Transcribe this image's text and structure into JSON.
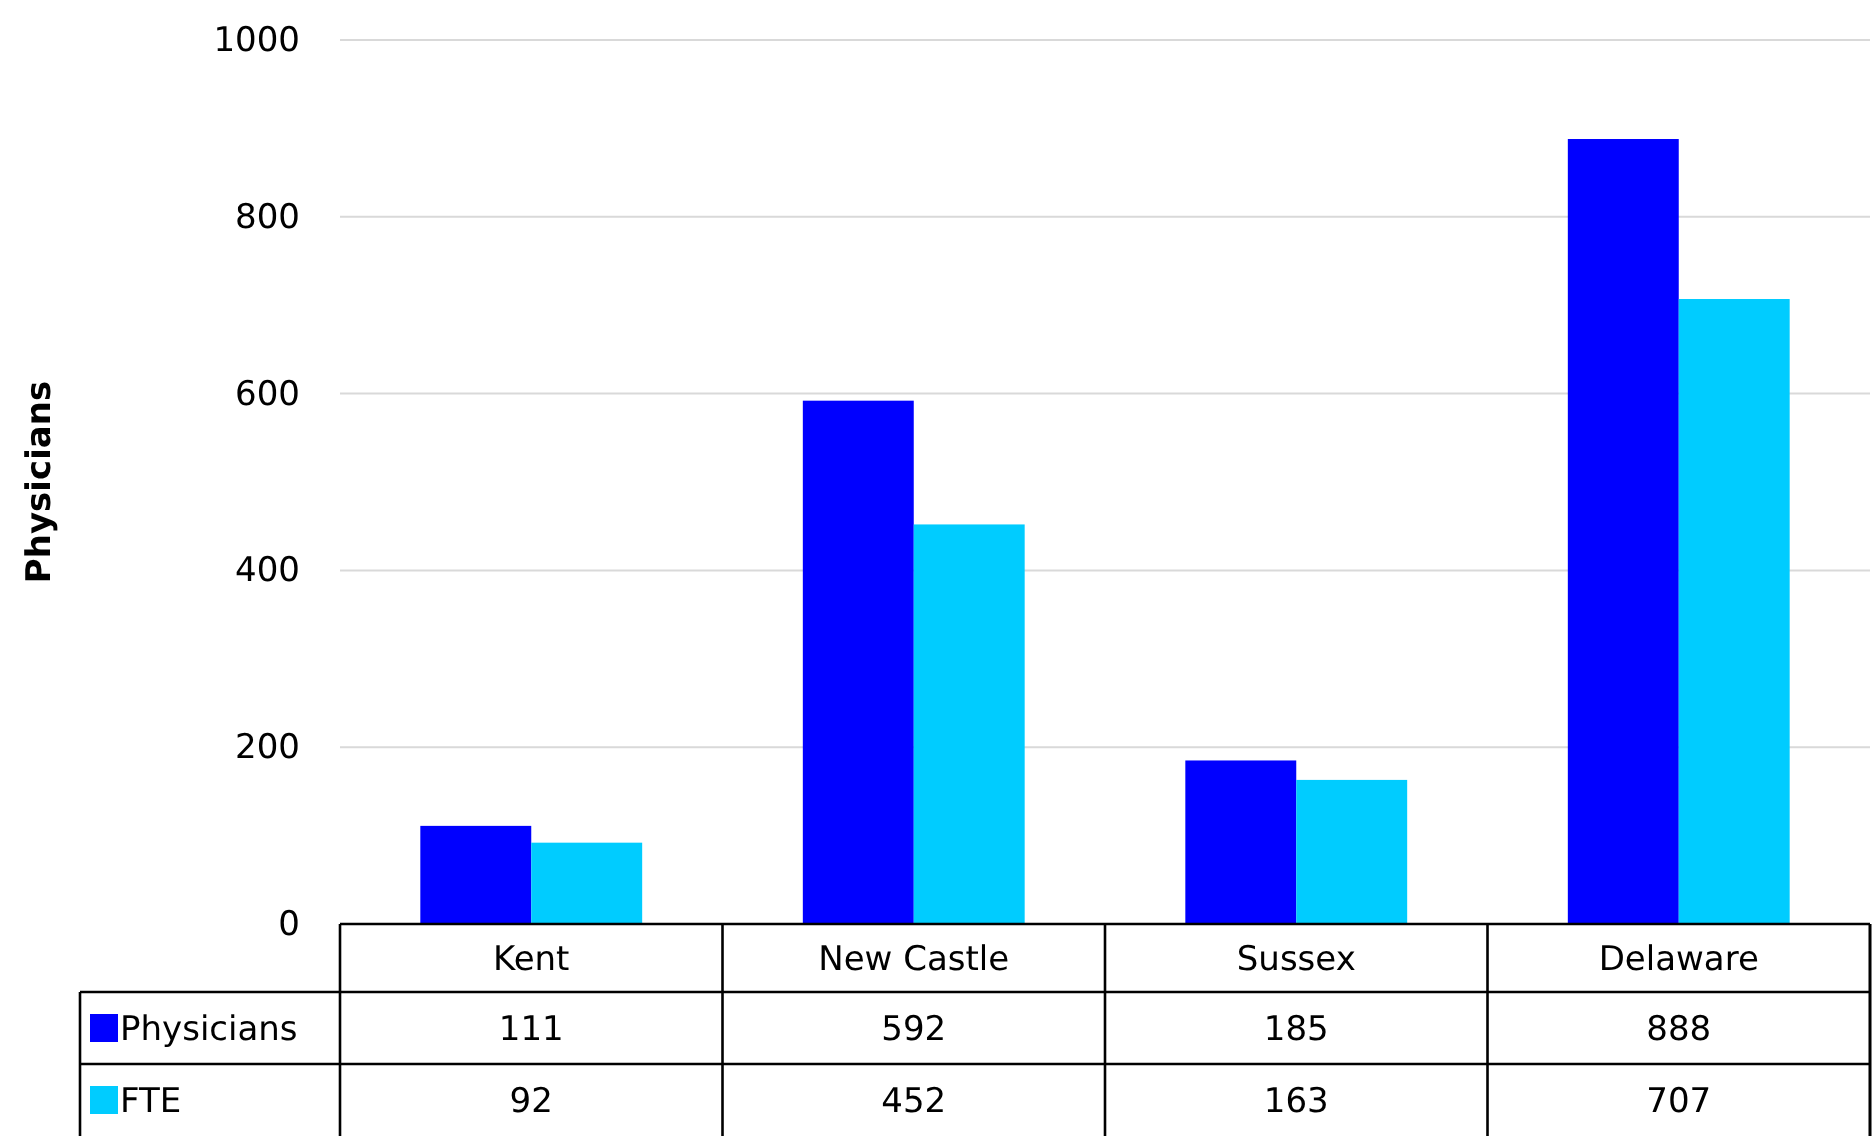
{
  "chart_data": {
    "type": "bar",
    "ylabel": "Physicians",
    "categories": [
      "Kent",
      "New Castle",
      "Sussex",
      "Delaware"
    ],
    "series": [
      {
        "name": "Physicians",
        "color": "#0000ff",
        "values": [
          111,
          592,
          185,
          888
        ]
      },
      {
        "name": "FTE",
        "color": "#00ccff",
        "values": [
          92,
          452,
          163,
          707
        ]
      }
    ],
    "ylim": [
      0,
      1000
    ],
    "yticks": [
      0,
      200,
      400,
      600,
      800,
      1000
    ],
    "grid": "y",
    "legend": "bottom",
    "data_labels": true
  }
}
